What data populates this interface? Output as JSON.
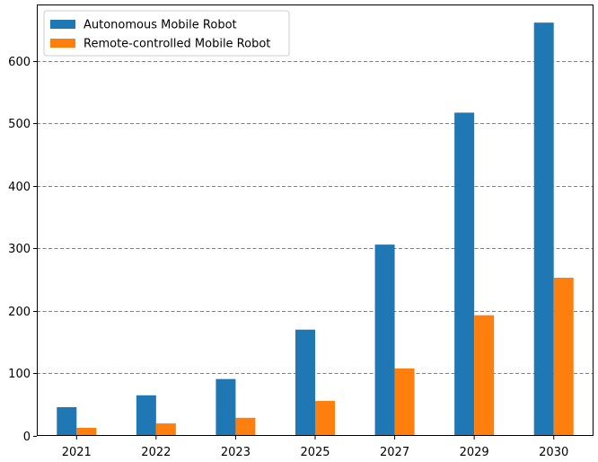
{
  "chart_data": {
    "type": "bar",
    "title": "",
    "xlabel": "",
    "ylabel": "",
    "categories": [
      "2021",
      "2022",
      "2023",
      "2025",
      "2027",
      "2029",
      "2030"
    ],
    "series": [
      {
        "name": "Autonomous Mobile Robot",
        "color": "#1f77b4",
        "values": [
          46,
          65,
          91,
          170,
          306,
          517,
          661
        ]
      },
      {
        "name": "Remote-controlled Mobile Robot",
        "color": "#ff7f0e",
        "values": [
          13,
          20,
          29,
          56,
          108,
          193,
          253
        ]
      }
    ],
    "ylim": [
      0,
      690
    ],
    "yticks": [
      0,
      100,
      200,
      300,
      400,
      500,
      600
    ],
    "grid": "horizontal dashed",
    "legend_position": "top-left"
  }
}
